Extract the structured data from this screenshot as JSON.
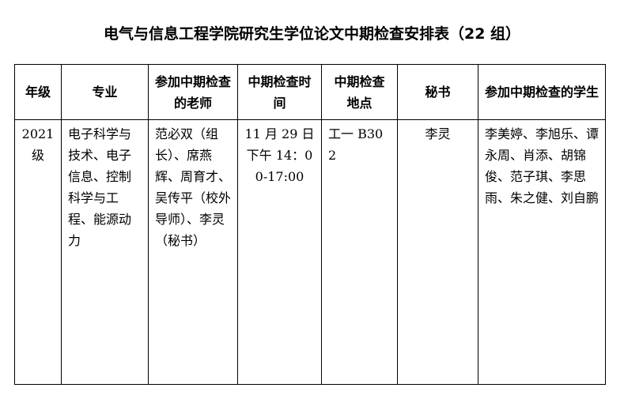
{
  "title": "电气与信息工程学院研究生学位论文中期检查安排表（22 组）",
  "headers": [
    "年级",
    "专业",
    "参加中期检查的老师",
    "中期检查时间",
    "中期检查地点",
    "秘书",
    "参加中期检查的学生"
  ],
  "row": {
    "grade": "2021级",
    "major": "电子科学与技术、电子信息、控制科学与工程、能源动力",
    "teachers": "范必双（组长）、席燕辉、周育才、吴传平（校外导师）、李灵（秘书）",
    "time": "11 月 29 日下午 14：00-17:00",
    "location": "工一 B302",
    "secretary": "李灵",
    "students": "李美婷、李旭乐、谭永周、肖添、胡锦俊、范子琪、李思雨、朱之健、刘自鹏"
  }
}
